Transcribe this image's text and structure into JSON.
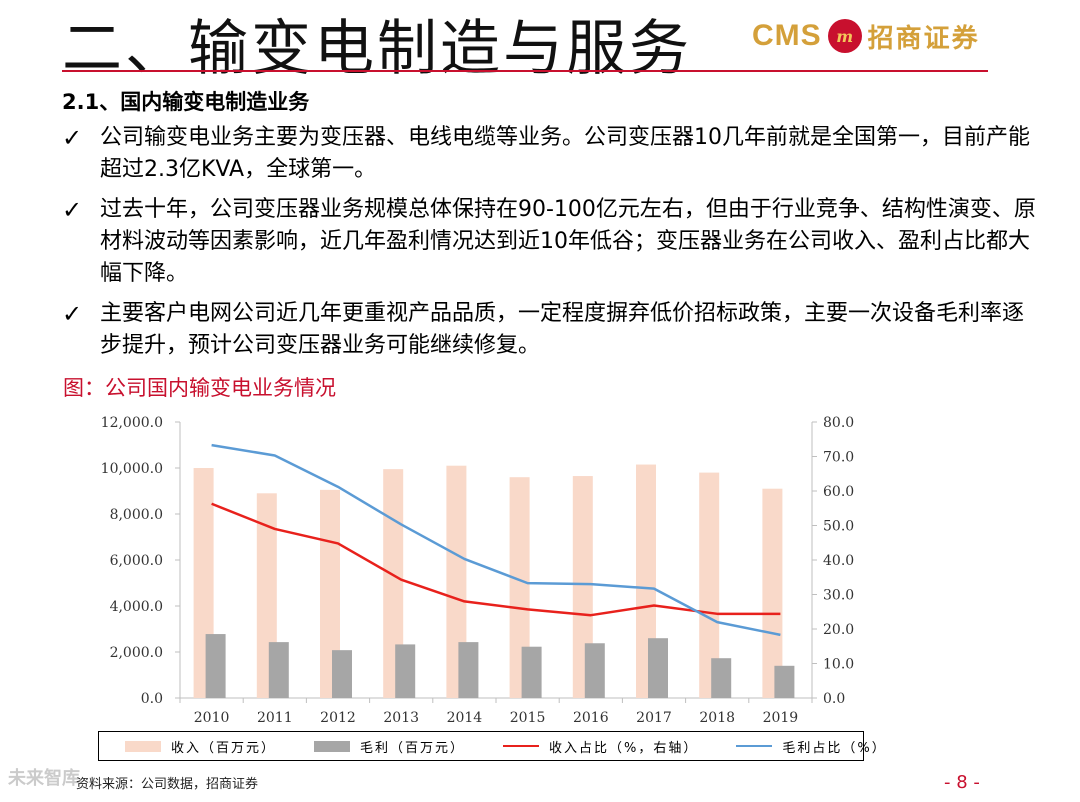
{
  "header": {
    "title": "二、输变电制造与服务",
    "logo_cms": "CMS",
    "logo_badge": "m",
    "logo_cn": "招商证券"
  },
  "section": {
    "heading": "2.1、国内输变电制造业务"
  },
  "bullets": [
    "公司输变电业务主要为变压器、电线电缆等业务。公司变压器10几年前就是全国第一，目前产能超过2.3亿KVA，全球第一。",
    "过去十年，公司变压器业务规模总体保持在90-100亿元左右，但由于行业竞争、结构性演变、原材料波动等因素影响，近几年盈利情况达到近10年低谷；变压器业务在公司收入、盈利占比都大幅下降。",
    "主要客户电网公司近几年更重视产品品质，一定程度摒弃低价招标政策，主要一次设备毛利率逐步提升，预计公司变压器业务可能继续修复。"
  ],
  "check_icon": "✓",
  "figure_caption": "图：公司国内输变电业务情况",
  "chart_data": {
    "type": "bar",
    "categories": [
      "2010",
      "2011",
      "2012",
      "2013",
      "2014",
      "2015",
      "2016",
      "2017",
      "2018",
      "2019"
    ],
    "series": [
      {
        "name": "收入（百万元）",
        "kind": "bar",
        "axis": "left",
        "color": "#f9d9c9",
        "values": [
          10000,
          8900,
          9050,
          9950,
          10100,
          9600,
          9650,
          10150,
          9800,
          9100
        ]
      },
      {
        "name": "毛利（百万元）",
        "kind": "bar",
        "axis": "left",
        "color": "#a6a6a6",
        "values": [
          2780,
          2430,
          2080,
          2330,
          2430,
          2230,
          2380,
          2600,
          1730,
          1400
        ]
      },
      {
        "name": "收入占比（%，右轴）",
        "kind": "line",
        "axis": "right",
        "color": "#e8211c",
        "values": [
          56.3,
          49.0,
          44.8,
          34.3,
          28.0,
          25.7,
          24.0,
          26.8,
          24.4,
          24.4
        ]
      },
      {
        "name": "毛利占比（%）",
        "kind": "line",
        "axis": "right",
        "color": "#5b9bd5",
        "values": [
          73.3,
          70.3,
          61.2,
          50.3,
          40.3,
          33.3,
          33.0,
          31.7,
          22.0,
          18.3
        ]
      }
    ],
    "y_left": {
      "min": 0,
      "max": 12000,
      "ticks": [
        "0.0",
        "2,000.0",
        "4,000.0",
        "6,000.0",
        "8,000.0",
        "10,000.0",
        "12,000.0"
      ]
    },
    "y_right": {
      "min": 0,
      "max": 80,
      "ticks": [
        "0.0",
        "10.0",
        "20.0",
        "30.0",
        "40.0",
        "50.0",
        "60.0",
        "70.0",
        "80.0"
      ]
    },
    "grid": false,
    "legend_position": "bottom"
  },
  "footer": {
    "source": "资料来源：公司数据，招商证券",
    "page": "- 8 -",
    "watermark": "未来智库"
  }
}
